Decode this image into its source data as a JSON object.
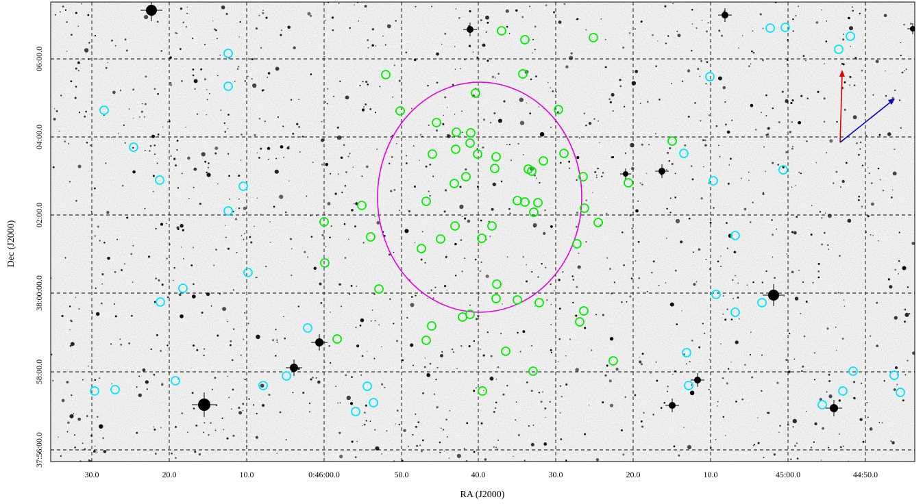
{
  "figure": {
    "x_axis_title": "RA (J2000)",
    "y_axis_title": "Dec (J2000)",
    "ra_tick_labels": [
      "30.0",
      "20.0",
      "10.0",
      "0:46:00.0",
      "50.0",
      "40.0",
      "30.0",
      "20.0",
      "10.0",
      "45:00.0",
      "44:50.0"
    ],
    "dec_tick_labels": [
      "06:00.0",
      "04:00.0",
      "02:00.0",
      "38:00:00.0",
      "58:00.0",
      "37:56:00.0"
    ],
    "colors": {
      "grid": "#000000",
      "member_circle": "#00ee00",
      "field_circle": "#00e5ff",
      "cluster_ellipse": "#e000e0",
      "north_arrow": "#e00000",
      "motion_arrow": "#0000d0",
      "star": "#000000",
      "background": "#f6f6f6"
    },
    "icons": {
      "north_arrow": "north-arrow-icon",
      "motion_arrow": "direction-arrow-icon"
    }
  }
}
